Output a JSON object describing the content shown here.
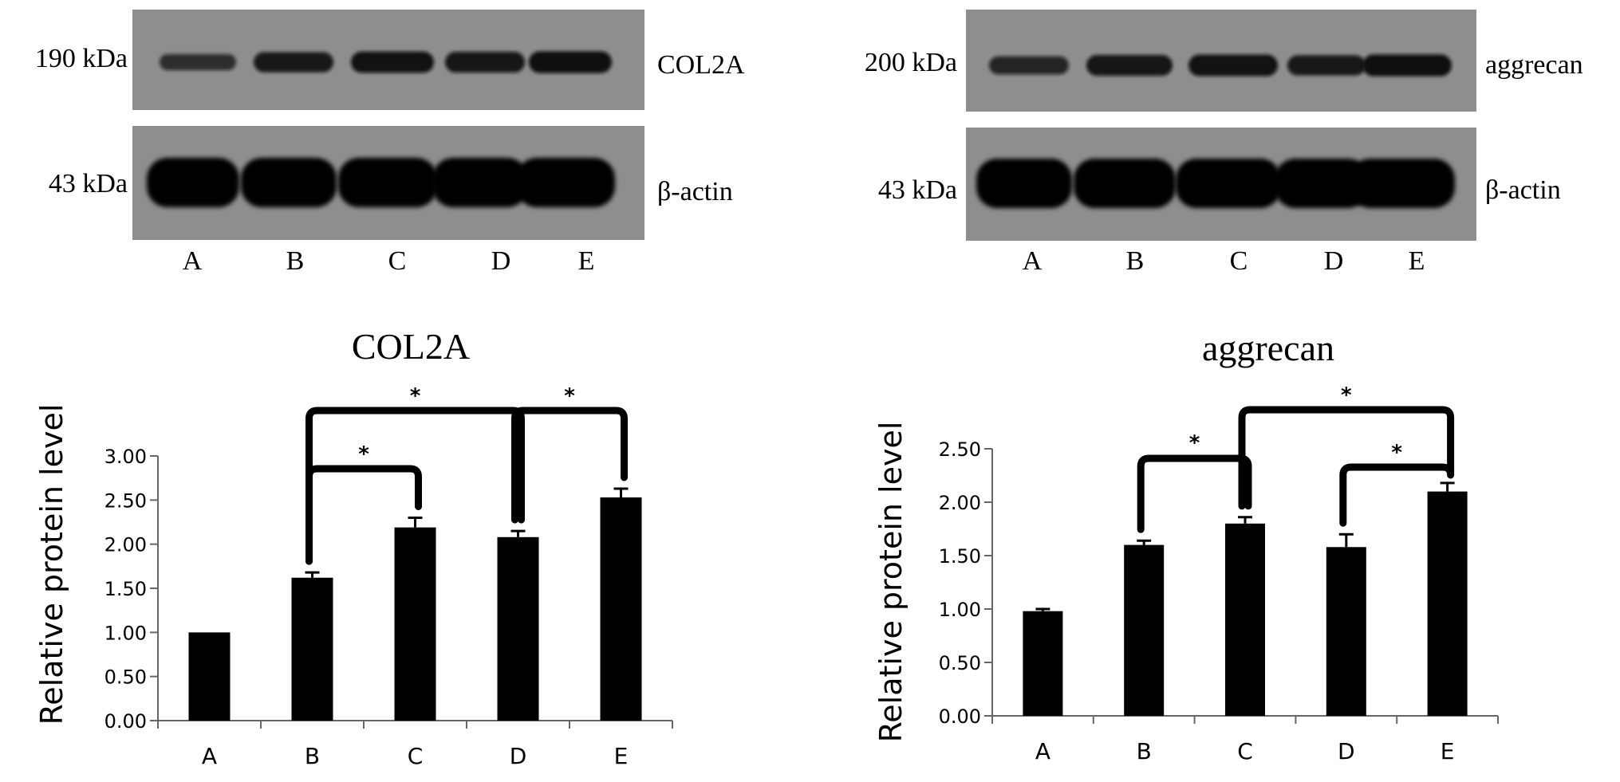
{
  "blots": [
    {
      "lanes": [
        "A",
        "B",
        "C",
        "D",
        "E"
      ],
      "target": {
        "mw": "190 kDa",
        "name": "COL2A",
        "intensity": [
          0.45,
          0.8,
          0.9,
          0.85,
          0.95
        ]
      },
      "control": {
        "mw": "43 kDa",
        "name": "β-actin",
        "intensity": [
          1,
          1,
          1,
          1,
          1
        ]
      }
    },
    {
      "lanes": [
        "A",
        "B",
        "C",
        "D",
        "E"
      ],
      "target": {
        "mw": "200 kDa",
        "name": "aggrecan",
        "intensity": [
          0.6,
          0.85,
          0.92,
          0.8,
          0.95
        ]
      },
      "control": {
        "mw": "43 kDa",
        "name": "β-actin",
        "intensity": [
          1,
          1,
          1,
          1,
          1
        ]
      }
    }
  ],
  "chart_data": [
    {
      "type": "bar",
      "title": "COL2A",
      "ylabel": "Relative protein level",
      "xlabel": "",
      "categories": [
        "A",
        "B",
        "C",
        "D",
        "E"
      ],
      "values": [
        1.0,
        1.62,
        2.19,
        2.08,
        2.53
      ],
      "errors": [
        0.0,
        0.06,
        0.11,
        0.07,
        0.1
      ],
      "ylim": [
        0,
        3
      ],
      "yticks": [
        "0.00",
        "0.50",
        "1.00",
        "1.50",
        "2.00",
        "2.50",
        "3.00"
      ],
      "grid": false,
      "bar_color": "#000000",
      "significance": [
        {
          "from": "B",
          "to": "C",
          "label": "*"
        },
        {
          "from": "B",
          "to": "D",
          "label": "*"
        },
        {
          "from": "D",
          "to": "E",
          "label": "*"
        }
      ]
    },
    {
      "type": "bar",
      "title": "aggrecan",
      "ylabel": "Relative protein level",
      "xlabel": "",
      "categories": [
        "A",
        "B",
        "C",
        "D",
        "E"
      ],
      "values": [
        0.98,
        1.6,
        1.8,
        1.58,
        2.1
      ],
      "errors": [
        0.02,
        0.04,
        0.06,
        0.12,
        0.08
      ],
      "ylim": [
        0,
        2.5
      ],
      "yticks": [
        "0.00",
        "0.50",
        "1.00",
        "1.50",
        "2.00",
        "2.50"
      ],
      "grid": false,
      "bar_color": "#000000",
      "significance": [
        {
          "from": "B",
          "to": "C",
          "label": "*"
        },
        {
          "from": "C",
          "to": "E",
          "label": "*"
        },
        {
          "from": "D",
          "to": "E",
          "label": "*"
        }
      ]
    }
  ]
}
